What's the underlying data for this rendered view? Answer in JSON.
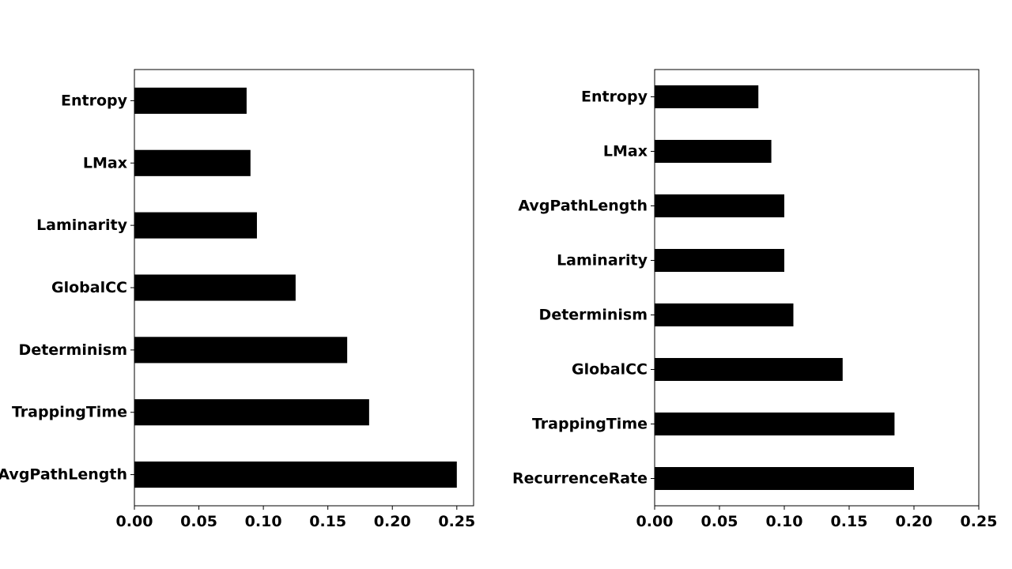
{
  "chart_data": [
    {
      "type": "bar",
      "orientation": "horizontal",
      "categories": [
        "Entropy",
        "LMax",
        "Laminarity",
        "GlobalCC",
        "Determinism",
        "TrappingTime",
        "AvgPathLength"
      ],
      "values": [
        0.087,
        0.09,
        0.095,
        0.125,
        0.165,
        0.182,
        0.25
      ],
      "xlim": [
        0,
        0.263
      ],
      "xticks": [
        "0.00",
        "0.05",
        "0.10",
        "0.15",
        "0.20",
        "0.25"
      ],
      "title": "",
      "xlabel": "",
      "ylabel": "",
      "grid": false,
      "bar_color": "#000000"
    },
    {
      "type": "bar",
      "orientation": "horizontal",
      "categories": [
        "Entropy",
        "LMax",
        "AvgPathLength",
        "Laminarity",
        "Determinism",
        "GlobalCC",
        "TrappingTime",
        "RecurrenceRate"
      ],
      "values": [
        0.08,
        0.09,
        0.1,
        0.1,
        0.107,
        0.145,
        0.185,
        0.2
      ],
      "xlim": [
        0,
        0.25
      ],
      "xticks": [
        "0.00",
        "0.05",
        "0.10",
        "0.15",
        "0.20",
        "0.25"
      ],
      "title": "",
      "xlabel": "",
      "ylabel": "",
      "grid": false,
      "bar_color": "#000000"
    }
  ]
}
